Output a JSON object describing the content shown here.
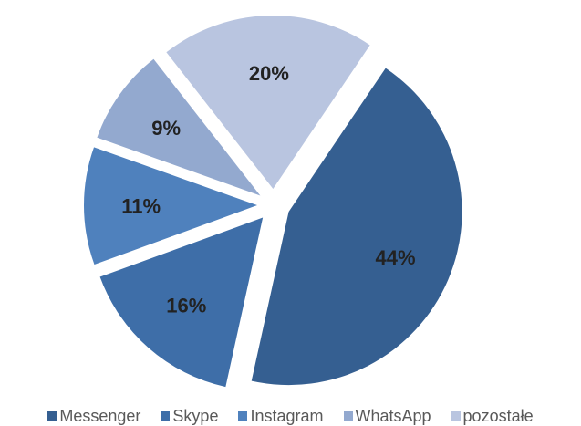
{
  "chart_data": {
    "type": "pie",
    "exploded": true,
    "legend_position": "bottom",
    "slices": [
      {
        "name": "Messenger",
        "value": 44,
        "label": "44%",
        "color": "#355F91"
      },
      {
        "name": "Skype",
        "value": 16,
        "label": "16%",
        "color": "#3E6EA8"
      },
      {
        "name": "Instagram",
        "value": 11,
        "label": "11%",
        "color": "#4F81BD"
      },
      {
        "name": "WhatsApp",
        "value": 9,
        "label": "9%",
        "color": "#93A9CF"
      },
      {
        "name": "pozostałe",
        "value": 20,
        "label": "20%",
        "color": "#B9C5E0"
      }
    ]
  }
}
